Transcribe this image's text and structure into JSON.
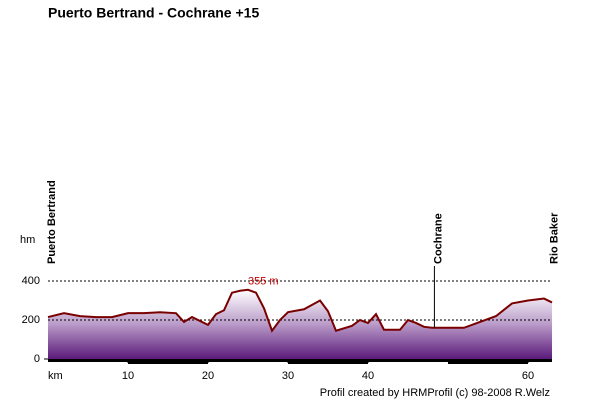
{
  "chart_data": {
    "type": "area",
    "title": "Puerto Bertrand - Cochrane +15",
    "y_label": "hm",
    "x_label": "km",
    "footer": "Profil created by HRMProfil (c) 98-2008 R.Welz",
    "x": [
      0,
      2,
      4,
      6,
      8,
      10,
      12,
      14,
      16,
      17,
      18,
      20,
      21,
      22,
      23,
      24,
      25,
      26,
      27,
      28,
      29,
      30,
      32,
      34,
      35,
      36,
      38,
      39,
      40,
      41,
      42,
      44,
      45,
      46,
      47,
      48,
      50,
      52,
      54,
      56,
      58,
      60,
      62,
      63
    ],
    "values": [
      215,
      235,
      220,
      215,
      215,
      235,
      235,
      240,
      235,
      190,
      215,
      175,
      230,
      250,
      340,
      350,
      355,
      340,
      260,
      145,
      200,
      240,
      255,
      300,
      245,
      145,
      170,
      200,
      185,
      230,
      150,
      150,
      200,
      185,
      165,
      160,
      160,
      160,
      190,
      220,
      285,
      300,
      310,
      290
    ],
    "color": "#7a0000",
    "xlim": [
      0,
      63
    ],
    "ylim": [
      0,
      400
    ],
    "xticks": [
      10,
      20,
      30,
      40,
      60
    ],
    "yticks": [
      0,
      200,
      400
    ],
    "grid": true,
    "annotations": [
      {
        "text": "355 m",
        "x": 25,
        "y": 355
      }
    ],
    "waypoints": [
      {
        "label": "Puerto Bertrand",
        "x": 0,
        "marker_line": false
      },
      {
        "label": "Cochrane",
        "x": 48.3,
        "marker_line": true
      },
      {
        "label": "Rio Baker",
        "x": 62.8,
        "marker_line": false
      }
    ]
  }
}
